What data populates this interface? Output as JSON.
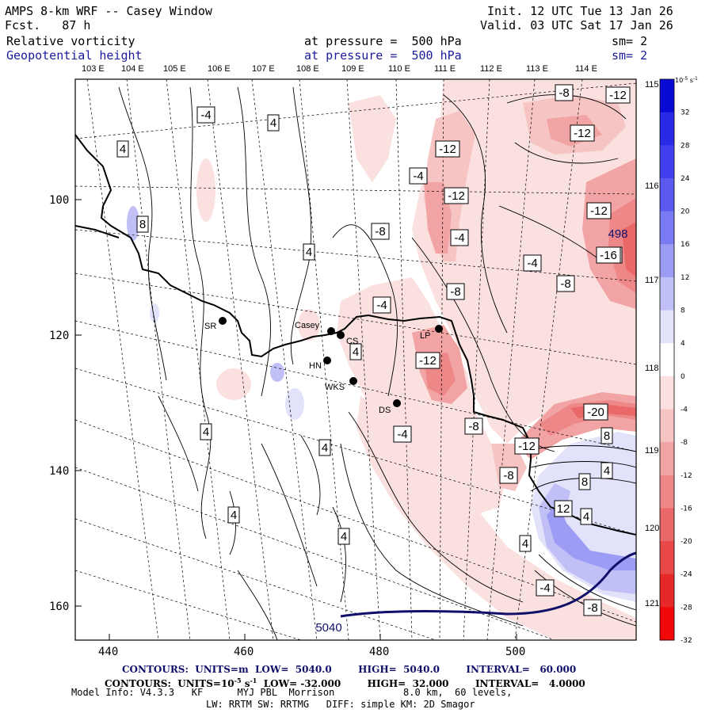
{
  "header": {
    "model_title": "AMPS 8-km WRF -- Casey Window",
    "forecast": "Fcst.   87 h",
    "init": "Init. 12 UTC Tue 13 Jan 26",
    "valid": "Valid. 03 UTC Sat 17 Jan 26",
    "field1_name": "Relative vorticity",
    "field1_level": "at pressure =  500 hPa",
    "field1_sm": "sm= 2",
    "field2_name": "Geopotential height",
    "field2_level": "at pressure =  500 hPa",
    "field2_sm": "sm= 2"
  },
  "longitude_labels_top": [
    "103 E",
    "104 E",
    "105 E",
    "106 E",
    "107 E",
    "108 E",
    "109 E",
    "110 E",
    "111 E",
    "112 E",
    "113 E",
    "114 E"
  ],
  "longitude_labels_right": [
    "115 E",
    "116 E",
    "117 E",
    "118 E",
    "119 E",
    "120 E",
    "121 E"
  ],
  "x_axis_ticks": [
    "440",
    "460",
    "480",
    "500"
  ],
  "y_axis_ticks": [
    "100",
    "120",
    "140",
    "160"
  ],
  "stations": [
    {
      "name": "SR"
    },
    {
      "name": "Casey"
    },
    {
      "name": "CS"
    },
    {
      "name": "HN"
    },
    {
      "name": "WKS"
    },
    {
      "name": "LP"
    },
    {
      "name": "DS"
    }
  ],
  "contour_labels": [
    "-4",
    "4",
    "4",
    "8",
    "4",
    "-8",
    "-12",
    "-12",
    "-4",
    "-12",
    "-4",
    "-4",
    "-8",
    "4",
    "-12",
    "-8",
    "-12",
    "-4",
    "-8",
    "-12",
    "-12",
    "-16",
    "498",
    "-4",
    "-8",
    "-20",
    "8",
    "-8",
    "8",
    "4",
    "4",
    "4",
    "4",
    "4",
    "-12",
    "4",
    "-8",
    "12",
    "4",
    "-4",
    "-8",
    "5040"
  ],
  "colorbar": {
    "unit": "10^-5 s^-1",
    "unit_base": "10",
    "unit_exp": "-5",
    "unit_suffix": "s",
    "unit_suffix_exp": "-1",
    "labels": [
      "32",
      "28",
      "24",
      "20",
      "16",
      "12",
      "8",
      "4",
      "0",
      "-4",
      "-8",
      "-12",
      "-16",
      "-20",
      "-24",
      "-28",
      "-32"
    ],
    "colors": [
      "#0a0ad6",
      "#2a2ae6",
      "#4040ee",
      "#5a5af0",
      "#7a7af2",
      "#9c9cf4",
      "#c0c0f7",
      "#e2e2fb",
      "#ffffff",
      "#fbe0e0",
      "#f7c4c4",
      "#f2a4a4",
      "#ee8888",
      "#eb6868",
      "#e84848",
      "#e62828",
      "#f20808"
    ]
  },
  "footer": {
    "contours1": "CONTOURS:  UNITS=m  LOW=  5040.0        HIGH=  5040.0        INTERVAL=   60.000",
    "contours2_a": "CONTOURS:  UNITS=10",
    "contours2_exp": "-5",
    "contours2_b": " s",
    "contours2_exp2": "-1",
    "contours2_c": "  LOW= -32.000        HIGH=  32.000        INTERVAL=   4.0000",
    "model_info": "Model Info: V4.3.3   KF      MYJ PBL  Morrison            8.0 km,  60 levels,",
    "physics": "LW: RRTM SW: RRTMG   DIFF: simple KM: 2D Smagor"
  }
}
